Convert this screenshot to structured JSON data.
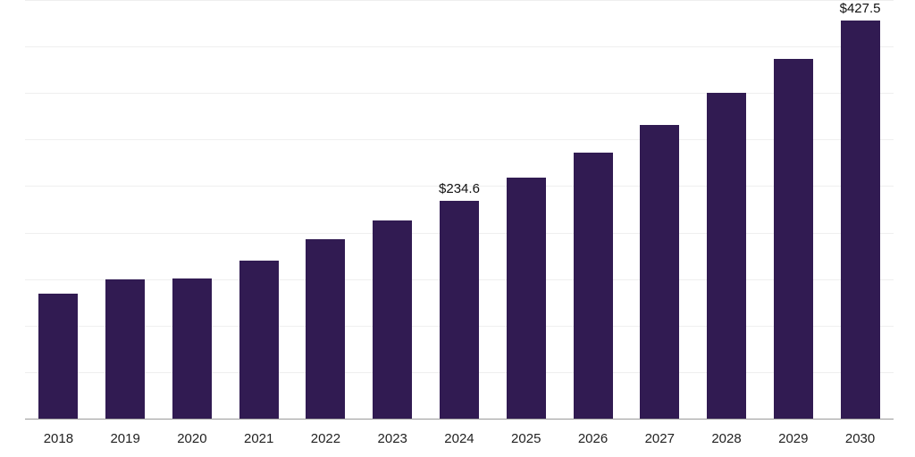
{
  "chart_data": {
    "type": "bar",
    "title": "",
    "xlabel": "",
    "ylabel": "",
    "categories": [
      "2018",
      "2019",
      "2020",
      "2021",
      "2022",
      "2023",
      "2024",
      "2025",
      "2026",
      "2027",
      "2028",
      "2029",
      "2030"
    ],
    "values": [
      134,
      150,
      151,
      170,
      193,
      213,
      234.6,
      259,
      286,
      316,
      350,
      387,
      427.5
    ],
    "value_prefix": "$",
    "annotations": [
      {
        "category": "2024",
        "text": "$234.6"
      },
      {
        "category": "2030",
        "text": "$427.5"
      }
    ],
    "ylim": [
      0,
      450
    ],
    "gridline_step": 50,
    "grid": true,
    "legend_position": "none",
    "bar_color": "#311b52",
    "axis_line_color": "#9a9a9a",
    "gridline_color": "#efefef",
    "label_color": "#222222"
  }
}
